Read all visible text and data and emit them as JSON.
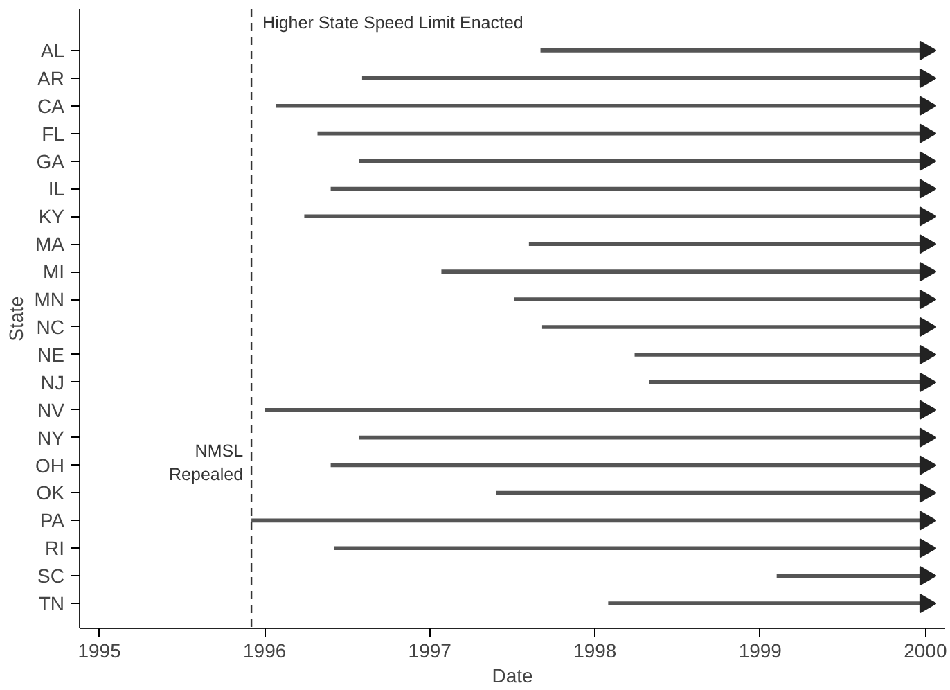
{
  "chart_data": {
    "type": "bar",
    "orientation": "horizontal",
    "xlabel": "Date",
    "ylabel": "State",
    "categories": [
      "AL",
      "AR",
      "CA",
      "FL",
      "GA",
      "IL",
      "KY",
      "MA",
      "MI",
      "MN",
      "NC",
      "NE",
      "NJ",
      "NV",
      "NY",
      "OH",
      "OK",
      "PA",
      "RI",
      "SC",
      "TN"
    ],
    "series": [
      {
        "color": "#555555",
        "base": [
          1997.67,
          1996.59,
          1996.07,
          1996.32,
          1996.57,
          1996.4,
          1996.24,
          1997.6,
          1997.07,
          1997.51,
          1997.68,
          1998.24,
          1998.33,
          1996.0,
          1996.57,
          1996.4,
          1997.4,
          1995.92,
          1996.42,
          1999.1,
          1998.08
        ],
        "values": [
          2.33,
          3.41,
          3.93,
          3.68,
          3.43,
          3.6,
          3.76,
          2.4,
          2.93,
          2.49,
          2.32,
          1.76,
          1.67,
          4.0,
          3.43,
          3.6,
          2.6,
          4.08,
          3.58,
          0.9,
          1.92
        ]
      },
      {
        "type": "scatter",
        "marker": "triangle",
        "color": "#222222",
        "values": [
          2000,
          2000,
          2000,
          2000,
          2000,
          2000,
          2000,
          2000,
          2000,
          2000,
          2000,
          2000,
          2000,
          2000,
          2000,
          2000,
          2000,
          2000,
          2000,
          2000,
          2000
        ]
      }
    ],
    "xlim": [
      1994.88,
      2000.12
    ],
    "xticks": [
      1995,
      1996,
      1997,
      1998,
      1999,
      2000
    ],
    "ref_lines": [
      {
        "axis": "x",
        "value": 1995.92,
        "label": "NMSL\nRepealed",
        "color": "#333333",
        "line_style": "dashed"
      }
    ],
    "annotations": [
      "Higher State Speed Limit Enacted"
    ],
    "grid": false
  }
}
